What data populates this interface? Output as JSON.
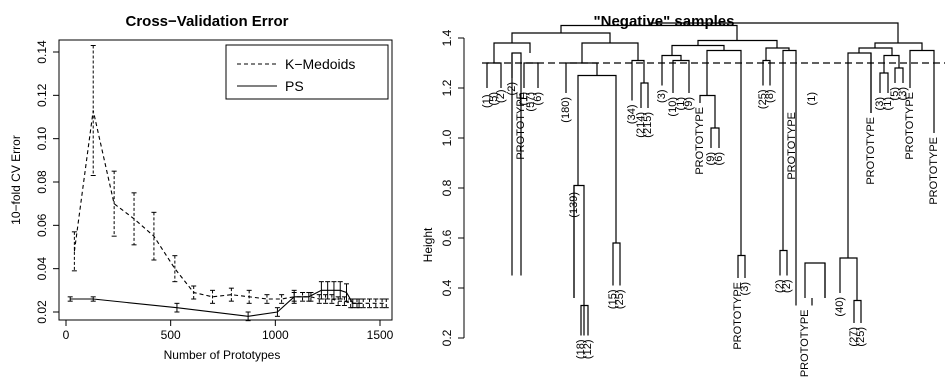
{
  "chart_data": [
    {
      "type": "line",
      "title": "Cross−Validation Error",
      "xlabel": "Number of Prototypes",
      "ylabel": "10−fold CV Error",
      "xlim": [
        0,
        1500
      ],
      "ylim": [
        0.02,
        0.14
      ],
      "x_ticks": [
        "0",
        "500",
        "1000",
        "1500"
      ],
      "y_ticks": [
        "0.02",
        "0.04",
        "0.06",
        "0.08",
        "0.10",
        "0.12",
        "0.14"
      ],
      "legend_position": "top-right",
      "series": [
        {
          "name": "K−Medoids",
          "style": "dashed",
          "error_bars": true,
          "x": [
            40,
            130,
            230,
            325,
            420,
            520,
            610,
            700,
            790,
            875,
            960,
            1030,
            1090,
            1130,
            1170,
            1210,
            1240,
            1270,
            1300,
            1330,
            1360,
            1390,
            1420,
            1450,
            1480,
            1510,
            1530
          ],
          "y": [
            0.048,
            0.113,
            0.07,
            0.063,
            0.055,
            0.04,
            0.029,
            0.027,
            0.028,
            0.027,
            0.026,
            0.026,
            0.027,
            0.027,
            0.027,
            0.026,
            0.026,
            0.026,
            0.025,
            0.025,
            0.024,
            0.024,
            0.024,
            0.024,
            0.024,
            0.024,
            0.024
          ],
          "err": [
            0.009,
            0.03,
            0.015,
            0.012,
            0.011,
            0.006,
            0.003,
            0.003,
            0.003,
            0.003,
            0.002,
            0.002,
            0.002,
            0.002,
            0.002,
            0.002,
            0.002,
            0.002,
            0.002,
            0.002,
            0.002,
            0.002,
            0.002,
            0.002,
            0.002,
            0.002,
            0.002
          ]
        },
        {
          "name": "PS",
          "style": "solid",
          "error_bars": true,
          "x": [
            20,
            130,
            530,
            870,
            1010,
            1090,
            1160,
            1220,
            1250,
            1280,
            1310,
            1340,
            1370,
            1400
          ],
          "y": [
            0.026,
            0.026,
            0.022,
            0.018,
            0.02,
            0.027,
            0.027,
            0.03,
            0.03,
            0.03,
            0.03,
            0.029,
            0.024,
            0.024
          ],
          "err": [
            0.001,
            0.001,
            0.002,
            0.002,
            0.002,
            0.003,
            0.002,
            0.004,
            0.004,
            0.004,
            0.004,
            0.004,
            0.002,
            0.002
          ]
        }
      ]
    },
    {
      "type": "dendrogram",
      "title": "\"Negative\" samples",
      "ylabel": "Height",
      "ylim": [
        0.2,
        1.4
      ],
      "y_ticks": [
        "0.2",
        "0.4",
        "0.6",
        "0.8",
        "1.0",
        "1.2",
        "1.4"
      ],
      "cut_height": 1.3,
      "leaf_labels": [
        "(1)",
        "(5)",
        "(2)",
        "(2)",
        "PROTOTYPE",
        "(1)",
        "(57)",
        "(6)",
        "(180)",
        "(139)",
        "(18)",
        "(12)",
        "(15)",
        "(25)",
        "(34)",
        "(214)",
        "(215)",
        "(3)",
        "(10)",
        "(1)",
        "(9)",
        "PROTOTYPE",
        "(9)",
        "(6)",
        "PROTOTYPE",
        "(3)",
        "(25)",
        "(8)",
        "PROTOTYPE",
        "(2)",
        "(2)",
        "PROTOTYPE",
        "(1)",
        "(40)",
        "(27)",
        "(25)",
        "PROTOTYPE",
        "(3)",
        "(1)",
        "(5)",
        "(3)",
        "PROTOTYPE",
        "PROTOTYPE"
      ]
    }
  ]
}
